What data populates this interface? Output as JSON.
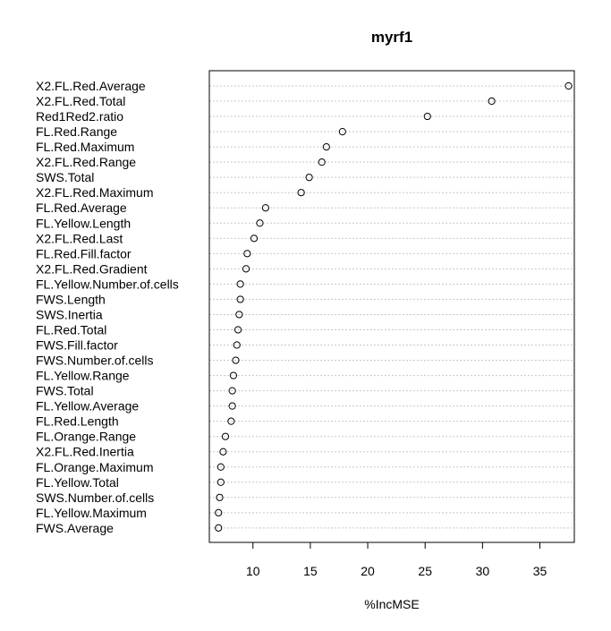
{
  "chart_data": {
    "type": "scatter",
    "title": "myrf1",
    "xlabel": "%IncMSE",
    "ylabel": "",
    "xlim": [
      6.2,
      38.0
    ],
    "xticks": [
      10,
      15,
      20,
      25,
      30,
      35
    ],
    "grid": "horizontal-dotted",
    "categories": [
      "X2.FL.Red.Average",
      "X2.FL.Red.Total",
      "Red1Red2.ratio",
      "FL.Red.Range",
      "FL.Red.Maximum",
      "X2.FL.Red.Range",
      "SWS.Total",
      "X2.FL.Red.Maximum",
      "FL.Red.Average",
      "FL.Yellow.Length",
      "X2.FL.Red.Last",
      "FL.Red.Fill.factor",
      "X2.FL.Red.Gradient",
      "FL.Yellow.Number.of.cells",
      "FWS.Length",
      "SWS.Inertia",
      "FL.Red.Total",
      "FWS.Fill.factor",
      "FWS.Number.of.cells",
      "FL.Yellow.Range",
      "FWS.Total",
      "FL.Yellow.Average",
      "FL.Red.Length",
      "FL.Orange.Range",
      "X2.FL.Red.Inertia",
      "FL.Orange.Maximum",
      "FL.Yellow.Total",
      "SWS.Number.of.cells",
      "FL.Yellow.Maximum",
      "FWS.Average"
    ],
    "values": [
      37.5,
      30.8,
      25.2,
      17.8,
      16.4,
      16.0,
      14.9,
      14.2,
      11.1,
      10.6,
      10.1,
      9.5,
      9.4,
      8.9,
      8.9,
      8.8,
      8.7,
      8.6,
      8.5,
      8.3,
      8.2,
      8.2,
      8.1,
      7.6,
      7.4,
      7.2,
      7.2,
      7.1,
      7.0,
      7.0
    ]
  }
}
